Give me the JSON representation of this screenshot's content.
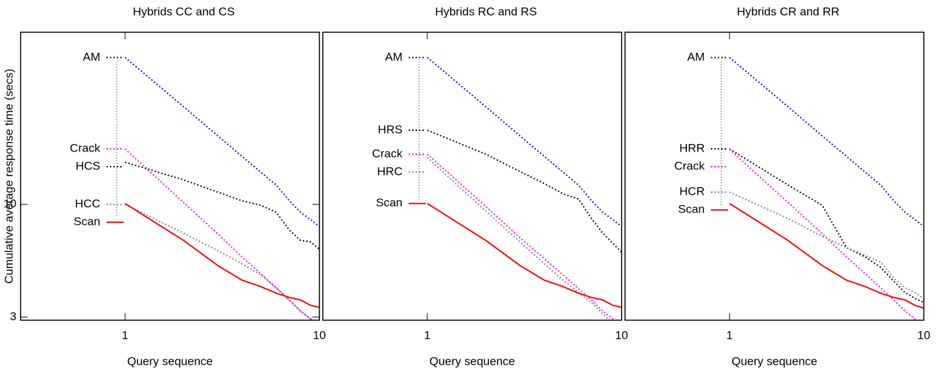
{
  "chart_data": [
    {
      "type": "line",
      "title": "Hybrids CC and CS",
      "x_label": "Query sequence",
      "y_label": "Cumulative average response time (secs)",
      "x": [
        1,
        2,
        3,
        4,
        5,
        6,
        7,
        8,
        9,
        10
      ],
      "xlim": [
        0.29,
        10
      ],
      "xticks": [
        1,
        10
      ],
      "xscale": "log",
      "ylim": [
        2.9,
        63
      ],
      "yticks": [
        3,
        10
      ],
      "yscale": "log",
      "series": [
        {
          "name": "AM",
          "color": "#0000ff",
          "style": "dotted",
          "values": [
            48.1,
            28.4,
            20.8,
            16.7,
            14.1,
            12.3,
            10.4,
            9.2,
            8.5,
            7.9
          ]
        },
        {
          "name": "Crack",
          "color": "#ff00ff",
          "style": "dotted",
          "values": [
            18.1,
            10.2,
            7.3,
            5.7,
            4.76,
            4.1,
            3.6,
            3.2,
            2.94,
            2.75
          ]
        },
        {
          "name": "HCS",
          "color": "#000000",
          "style": "dotted",
          "values": [
            15.7,
            13.0,
            11.4,
            10.4,
            9.9,
            9.2,
            7.6,
            6.8,
            6.7,
            6.2
          ]
        },
        {
          "name": "HCC",
          "color": "#808080",
          "style": "dotted",
          "values": [
            10.0,
            7.35,
            6.1,
            5.3,
            4.7,
            4.1,
            3.6,
            3.2,
            2.94,
            2.75
          ]
        },
        {
          "name": "Scan",
          "color": "#ff0000",
          "style": "solid",
          "values": [
            10.1,
            6.8,
            5.2,
            4.45,
            4.15,
            3.87,
            3.7,
            3.6,
            3.4,
            3.33
          ]
        }
      ]
    },
    {
      "type": "line",
      "title": "Hybrids RC and RS",
      "x_label": "Query sequence",
      "x": [
        1,
        2,
        3,
        4,
        5,
        6,
        7,
        8,
        9,
        10
      ],
      "xlim": [
        0.29,
        10
      ],
      "xticks": [
        1,
        10
      ],
      "xscale": "log",
      "ylim": [
        2.9,
        63
      ],
      "yscale": "log",
      "series": [
        {
          "name": "AM",
          "color": "#0000ff",
          "style": "dotted",
          "values": [
            48.1,
            28.4,
            20.8,
            16.7,
            14.1,
            12.3,
            10.4,
            9.2,
            8.5,
            7.9
          ]
        },
        {
          "name": "HRS",
          "color": "#000000",
          "style": "dotted",
          "values": [
            22.1,
            17.1,
            14.2,
            12.5,
            11.2,
            10.6,
            8.6,
            7.35,
            6.6,
            6.0
          ]
        },
        {
          "name": "Crack",
          "color": "#ff00ff",
          "style": "dotted",
          "values": [
            17.1,
            9.8,
            7.0,
            5.6,
            4.7,
            4.06,
            3.6,
            3.2,
            2.94,
            2.75
          ]
        },
        {
          "name": "HRC",
          "color": "#808080",
          "style": "dotted",
          "values": [
            16.5,
            9.3,
            6.7,
            5.3,
            4.45,
            3.9,
            3.5,
            3.1,
            2.8,
            2.7
          ]
        },
        {
          "name": "Scan",
          "color": "#ff0000",
          "style": "solid",
          "values": [
            10.1,
            6.8,
            5.2,
            4.45,
            4.15,
            3.87,
            3.7,
            3.6,
            3.4,
            3.33
          ]
        }
      ]
    },
    {
      "type": "line",
      "title": "Hybrids CR and RR",
      "x_label": "Query sequence",
      "x": [
        1,
        2,
        3,
        4,
        5,
        6,
        7,
        8,
        9,
        10
      ],
      "xlim": [
        0.29,
        10
      ],
      "xticks": [
        1,
        10
      ],
      "xscale": "log",
      "ylim": [
        2.9,
        63
      ],
      "yscale": "log",
      "series": [
        {
          "name": "AM",
          "color": "#0000ff",
          "style": "dotted",
          "values": [
            48.1,
            28.4,
            20.8,
            16.7,
            14.1,
            12.3,
            10.4,
            9.2,
            8.5,
            7.9
          ]
        },
        {
          "name": "HRR",
          "color": "#000000",
          "style": "dotted",
          "values": [
            18.1,
            12.3,
            9.9,
            6.3,
            5.7,
            5.1,
            4.4,
            3.9,
            3.66,
            3.5
          ]
        },
        {
          "name": "Crack",
          "color": "#ff00ff",
          "style": "dotted",
          "values": [
            18.0,
            10.2,
            7.3,
            5.7,
            4.76,
            4.1,
            3.6,
            3.2,
            2.94,
            2.75
          ]
        },
        {
          "name": "HCR",
          "color": "#808080",
          "style": "dotted",
          "values": [
            11.4,
            8.6,
            7.1,
            6.3,
            5.8,
            5.4,
            4.55,
            4.1,
            3.9,
            3.65
          ]
        },
        {
          "name": "Scan",
          "color": "#ff0000",
          "style": "solid",
          "values": [
            10.1,
            6.8,
            5.2,
            4.45,
            4.15,
            3.87,
            3.7,
            3.6,
            3.4,
            3.3
          ]
        }
      ]
    }
  ]
}
